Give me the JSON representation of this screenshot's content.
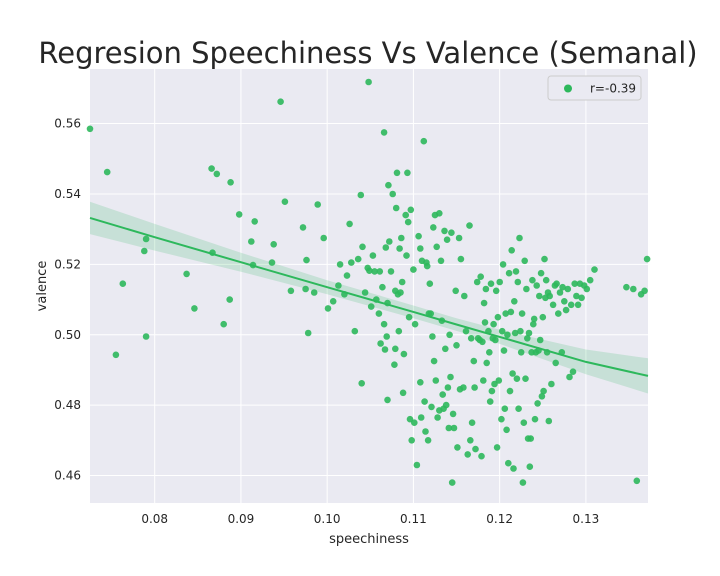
{
  "chart_data": {
    "type": "scatter",
    "title": "Regresion Speechiness Vs Valence (Semanal)",
    "xlabel": "speechiness",
    "ylabel": "valence",
    "xlim": [
      0.0725,
      0.1372
    ],
    "ylim": [
      0.4522,
      0.5755
    ],
    "xticks": [
      0.08,
      0.09,
      0.1,
      0.11,
      0.12,
      0.13
    ],
    "xtick_labels": [
      "0.08",
      "0.09",
      "0.10",
      "0.11",
      "0.12",
      "0.13"
    ],
    "yticks": [
      0.46,
      0.48,
      0.5,
      0.52,
      0.54,
      0.56
    ],
    "ytick_labels": [
      "0.46",
      "0.48",
      "0.50",
      "0.52",
      "0.54",
      "0.56"
    ],
    "grid": true,
    "legend_position": "top-right",
    "series": [
      {
        "name": "r=-0.39",
        "color": "#2db85c",
        "points": [
          [
            0.0725,
            0.5585
          ],
          [
            0.0745,
            0.5462
          ],
          [
            0.0755,
            0.4943
          ],
          [
            0.0763,
            0.5145
          ],
          [
            0.0788,
            0.5238
          ],
          [
            0.079,
            0.5272
          ],
          [
            0.079,
            0.4995
          ],
          [
            0.0837,
            0.5173
          ],
          [
            0.0846,
            0.5075
          ],
          [
            0.0866,
            0.5472
          ],
          [
            0.0867,
            0.5233
          ],
          [
            0.0872,
            0.5457
          ],
          [
            0.088,
            0.503
          ],
          [
            0.0887,
            0.51
          ],
          [
            0.0888,
            0.5433
          ],
          [
            0.0898,
            0.5342
          ],
          [
            0.0912,
            0.5265
          ],
          [
            0.0914,
            0.5198
          ],
          [
            0.0916,
            0.5322
          ],
          [
            0.0936,
            0.5205
          ],
          [
            0.0938,
            0.5257
          ],
          [
            0.0946,
            0.5662
          ],
          [
            0.0951,
            0.5378
          ],
          [
            0.0958,
            0.5125
          ],
          [
            0.0972,
            0.5305
          ],
          [
            0.0975,
            0.513
          ],
          [
            0.0976,
            0.5212
          ],
          [
            0.0978,
            0.5005
          ],
          [
            0.0985,
            0.512
          ],
          [
            0.0989,
            0.537
          ],
          [
            0.0996,
            0.5275
          ],
          [
            0.1001,
            0.5075
          ],
          [
            0.1007,
            0.5095
          ],
          [
            0.1013,
            0.514
          ],
          [
            0.1015,
            0.52
          ],
          [
            0.102,
            0.5115
          ],
          [
            0.1023,
            0.5168
          ],
          [
            0.1026,
            0.5315
          ],
          [
            0.1028,
            0.5205
          ],
          [
            0.1032,
            0.501
          ],
          [
            0.1036,
            0.5215
          ],
          [
            0.1039,
            0.5397
          ],
          [
            0.104,
            0.4862
          ],
          [
            0.1041,
            0.525
          ],
          [
            0.1044,
            0.512
          ],
          [
            0.1047,
            0.519
          ],
          [
            0.1048,
            0.5718
          ],
          [
            0.1049,
            0.5182
          ],
          [
            0.1051,
            0.508
          ],
          [
            0.1053,
            0.5225
          ],
          [
            0.1055,
            0.518
          ],
          [
            0.1057,
            0.51
          ],
          [
            0.106,
            0.506
          ],
          [
            0.1061,
            0.518
          ],
          [
            0.1062,
            0.4975
          ],
          [
            0.1064,
            0.5135
          ],
          [
            0.1066,
            0.5575
          ],
          [
            0.1066,
            0.503
          ],
          [
            0.1067,
            0.4958
          ],
          [
            0.1068,
            0.5248
          ],
          [
            0.1069,
            0.4995
          ],
          [
            0.107,
            0.509
          ],
          [
            0.107,
            0.4815
          ],
          [
            0.1071,
            0.5425
          ],
          [
            0.1072,
            0.5265
          ],
          [
            0.1074,
            0.518
          ],
          [
            0.1076,
            0.54
          ],
          [
            0.1078,
            0.4915
          ],
          [
            0.1079,
            0.5125
          ],
          [
            0.1079,
            0.496
          ],
          [
            0.108,
            0.536
          ],
          [
            0.1081,
            0.546
          ],
          [
            0.1082,
            0.5115
          ],
          [
            0.1083,
            0.501
          ],
          [
            0.1084,
            0.5245
          ],
          [
            0.1085,
            0.512
          ],
          [
            0.1086,
            0.5275
          ],
          [
            0.1087,
            0.515
          ],
          [
            0.1088,
            0.4835
          ],
          [
            0.1089,
            0.4945
          ],
          [
            0.1091,
            0.534
          ],
          [
            0.1092,
            0.5225
          ],
          [
            0.1093,
            0.546
          ],
          [
            0.1094,
            0.532
          ],
          [
            0.1095,
            0.505
          ],
          [
            0.1096,
            0.476
          ],
          [
            0.1097,
            0.5355
          ],
          [
            0.1098,
            0.47
          ],
          [
            0.11,
            0.5185
          ],
          [
            0.1101,
            0.475
          ],
          [
            0.1102,
            0.503
          ],
          [
            0.1104,
            0.463
          ],
          [
            0.1106,
            0.528
          ],
          [
            0.1108,
            0.5245
          ],
          [
            0.1108,
            0.4865
          ],
          [
            0.1109,
            0.4765
          ],
          [
            0.111,
            0.521
          ],
          [
            0.1112,
            0.555
          ],
          [
            0.1113,
            0.481
          ],
          [
            0.1114,
            0.4725
          ],
          [
            0.1115,
            0.5205
          ],
          [
            0.1116,
            0.5195
          ],
          [
            0.1117,
            0.47
          ],
          [
            0.1118,
            0.506
          ],
          [
            0.1119,
            0.5145
          ],
          [
            0.112,
            0.506
          ],
          [
            0.1121,
            0.4795
          ],
          [
            0.1122,
            0.4995
          ],
          [
            0.1123,
            0.5305
          ],
          [
            0.1124,
            0.4925
          ],
          [
            0.1125,
            0.534
          ],
          [
            0.1126,
            0.487
          ],
          [
            0.1127,
            0.525
          ],
          [
            0.1128,
            0.4765
          ],
          [
            0.113,
            0.5345
          ],
          [
            0.113,
            0.4785
          ],
          [
            0.1132,
            0.521
          ],
          [
            0.1133,
            0.504
          ],
          [
            0.1134,
            0.483
          ],
          [
            0.1135,
            0.479
          ],
          [
            0.1136,
            0.5295
          ],
          [
            0.1137,
            0.496
          ],
          [
            0.1138,
            0.48
          ],
          [
            0.1139,
            0.527
          ],
          [
            0.114,
            0.485
          ],
          [
            0.1141,
            0.4735
          ],
          [
            0.1142,
            0.5
          ],
          [
            0.1143,
            0.488
          ],
          [
            0.1144,
            0.529
          ],
          [
            0.1145,
            0.458
          ],
          [
            0.1146,
            0.4775
          ],
          [
            0.1147,
            0.4735
          ],
          [
            0.1149,
            0.5125
          ],
          [
            0.115,
            0.497
          ],
          [
            0.1151,
            0.468
          ],
          [
            0.1153,
            0.5275
          ],
          [
            0.1154,
            0.4845
          ],
          [
            0.1155,
            0.5215
          ],
          [
            0.1158,
            0.485
          ],
          [
            0.1159,
            0.511
          ],
          [
            0.1161,
            0.501
          ],
          [
            0.1163,
            0.466
          ],
          [
            0.1165,
            0.531
          ],
          [
            0.1166,
            0.47
          ],
          [
            0.1167,
            0.499
          ],
          [
            0.1168,
            0.475
          ],
          [
            0.117,
            0.4925
          ],
          [
            0.1171,
            0.485
          ],
          [
            0.1172,
            0.4675
          ],
          [
            0.1174,
            0.515
          ],
          [
            0.1175,
            0.499
          ],
          [
            0.1177,
            0.4985
          ],
          [
            0.1178,
            0.5165
          ],
          [
            0.1179,
            0.4655
          ],
          [
            0.118,
            0.498
          ],
          [
            0.1181,
            0.487
          ],
          [
            0.1182,
            0.509
          ],
          [
            0.1183,
            0.5035
          ],
          [
            0.1184,
            0.513
          ],
          [
            0.1185,
            0.492
          ],
          [
            0.1187,
            0.501
          ],
          [
            0.1188,
            0.495
          ],
          [
            0.1189,
            0.481
          ],
          [
            0.119,
            0.5145
          ],
          [
            0.1191,
            0.484
          ],
          [
            0.1192,
            0.499
          ],
          [
            0.1193,
            0.503
          ],
          [
            0.1194,
            0.486
          ],
          [
            0.1195,
            0.4985
          ],
          [
            0.1196,
            0.5125
          ],
          [
            0.1197,
            0.468
          ],
          [
            0.1198,
            0.505
          ],
          [
            0.1199,
            0.487
          ],
          [
            0.12,
            0.515
          ],
          [
            0.1202,
            0.476
          ],
          [
            0.1203,
            0.501
          ],
          [
            0.1204,
            0.52
          ],
          [
            0.1205,
            0.4955
          ],
          [
            0.1206,
            0.479
          ],
          [
            0.1207,
            0.506
          ],
          [
            0.1208,
            0.473
          ],
          [
            0.1209,
            0.5
          ],
          [
            0.121,
            0.4635
          ],
          [
            0.1211,
            0.5175
          ],
          [
            0.1212,
            0.484
          ],
          [
            0.1213,
            0.5065
          ],
          [
            0.1214,
            0.524
          ],
          [
            0.1215,
            0.489
          ],
          [
            0.1216,
            0.462
          ],
          [
            0.1217,
            0.5095
          ],
          [
            0.1218,
            0.5005
          ],
          [
            0.1219,
            0.518
          ],
          [
            0.122,
            0.4875
          ],
          [
            0.1221,
            0.515
          ],
          [
            0.1222,
            0.479
          ],
          [
            0.1223,
            0.5275
          ],
          [
            0.1224,
            0.501
          ],
          [
            0.1225,
            0.495
          ],
          [
            0.1226,
            0.506
          ],
          [
            0.1227,
            0.458
          ],
          [
            0.1228,
            0.475
          ],
          [
            0.1229,
            0.521
          ],
          [
            0.123,
            0.4875
          ],
          [
            0.1231,
            0.513
          ],
          [
            0.1232,
            0.499
          ],
          [
            0.1233,
            0.4705
          ],
          [
            0.1234,
            0.5005
          ],
          [
            0.1235,
            0.4625
          ],
          [
            0.1236,
            0.4705
          ],
          [
            0.1237,
            0.495
          ],
          [
            0.1238,
            0.5155
          ],
          [
            0.1239,
            0.503
          ],
          [
            0.124,
            0.5045
          ],
          [
            0.1241,
            0.476
          ],
          [
            0.1242,
            0.495
          ],
          [
            0.1243,
            0.514
          ],
          [
            0.1244,
            0.4805
          ],
          [
            0.1245,
            0.4955
          ],
          [
            0.1246,
            0.511
          ],
          [
            0.1247,
            0.4985
          ],
          [
            0.1248,
            0.5175
          ],
          [
            0.1249,
            0.4825
          ],
          [
            0.125,
            0.505
          ],
          [
            0.1251,
            0.484
          ],
          [
            0.1252,
            0.5215
          ],
          [
            0.1253,
            0.5105
          ],
          [
            0.1254,
            0.5155
          ],
          [
            0.1255,
            0.495
          ],
          [
            0.1256,
            0.512
          ],
          [
            0.1257,
            0.4755
          ],
          [
            0.1258,
            0.511
          ],
          [
            0.126,
            0.486
          ],
          [
            0.1262,
            0.5085
          ],
          [
            0.1264,
            0.514
          ],
          [
            0.1265,
            0.492
          ],
          [
            0.1266,
            0.5145
          ],
          [
            0.1268,
            0.506
          ],
          [
            0.127,
            0.512
          ],
          [
            0.1272,
            0.495
          ],
          [
            0.1273,
            0.5135
          ],
          [
            0.1275,
            0.5095
          ],
          [
            0.1277,
            0.507
          ],
          [
            0.1279,
            0.513
          ],
          [
            0.1281,
            0.488
          ],
          [
            0.1283,
            0.5085
          ],
          [
            0.1285,
            0.4895
          ],
          [
            0.1287,
            0.5145
          ],
          [
            0.1289,
            0.511
          ],
          [
            0.1291,
            0.5085
          ],
          [
            0.1293,
            0.5145
          ],
          [
            0.1295,
            0.5105
          ],
          [
            0.1298,
            0.514
          ],
          [
            0.1301,
            0.513
          ],
          [
            0.1305,
            0.5155
          ],
          [
            0.131,
            0.5185
          ],
          [
            0.1347,
            0.5135
          ],
          [
            0.1355,
            0.513
          ],
          [
            0.1359,
            0.4585
          ],
          [
            0.1364,
            0.5115
          ],
          [
            0.1368,
            0.5125
          ],
          [
            0.1371,
            0.5215
          ]
        ]
      }
    ],
    "regression": {
      "color": "#2db85c",
      "ci_color": "#2db85c",
      "x": [
        0.0725,
        0.08,
        0.09,
        0.1,
        0.11,
        0.115,
        0.12,
        0.13,
        0.1372
      ],
      "y": [
        0.5332,
        0.5277,
        0.5206,
        0.5135,
        0.5065,
        0.5029,
        0.4994,
        0.4923,
        0.4883
      ],
      "ci_upper": [
        0.5378,
        0.5315,
        0.5233,
        0.5155,
        0.5083,
        0.5047,
        0.5014,
        0.4958,
        0.4933
      ],
      "ci_lower": [
        0.5286,
        0.5239,
        0.5179,
        0.5115,
        0.5047,
        0.5011,
        0.4974,
        0.4888,
        0.4833
      ]
    }
  }
}
